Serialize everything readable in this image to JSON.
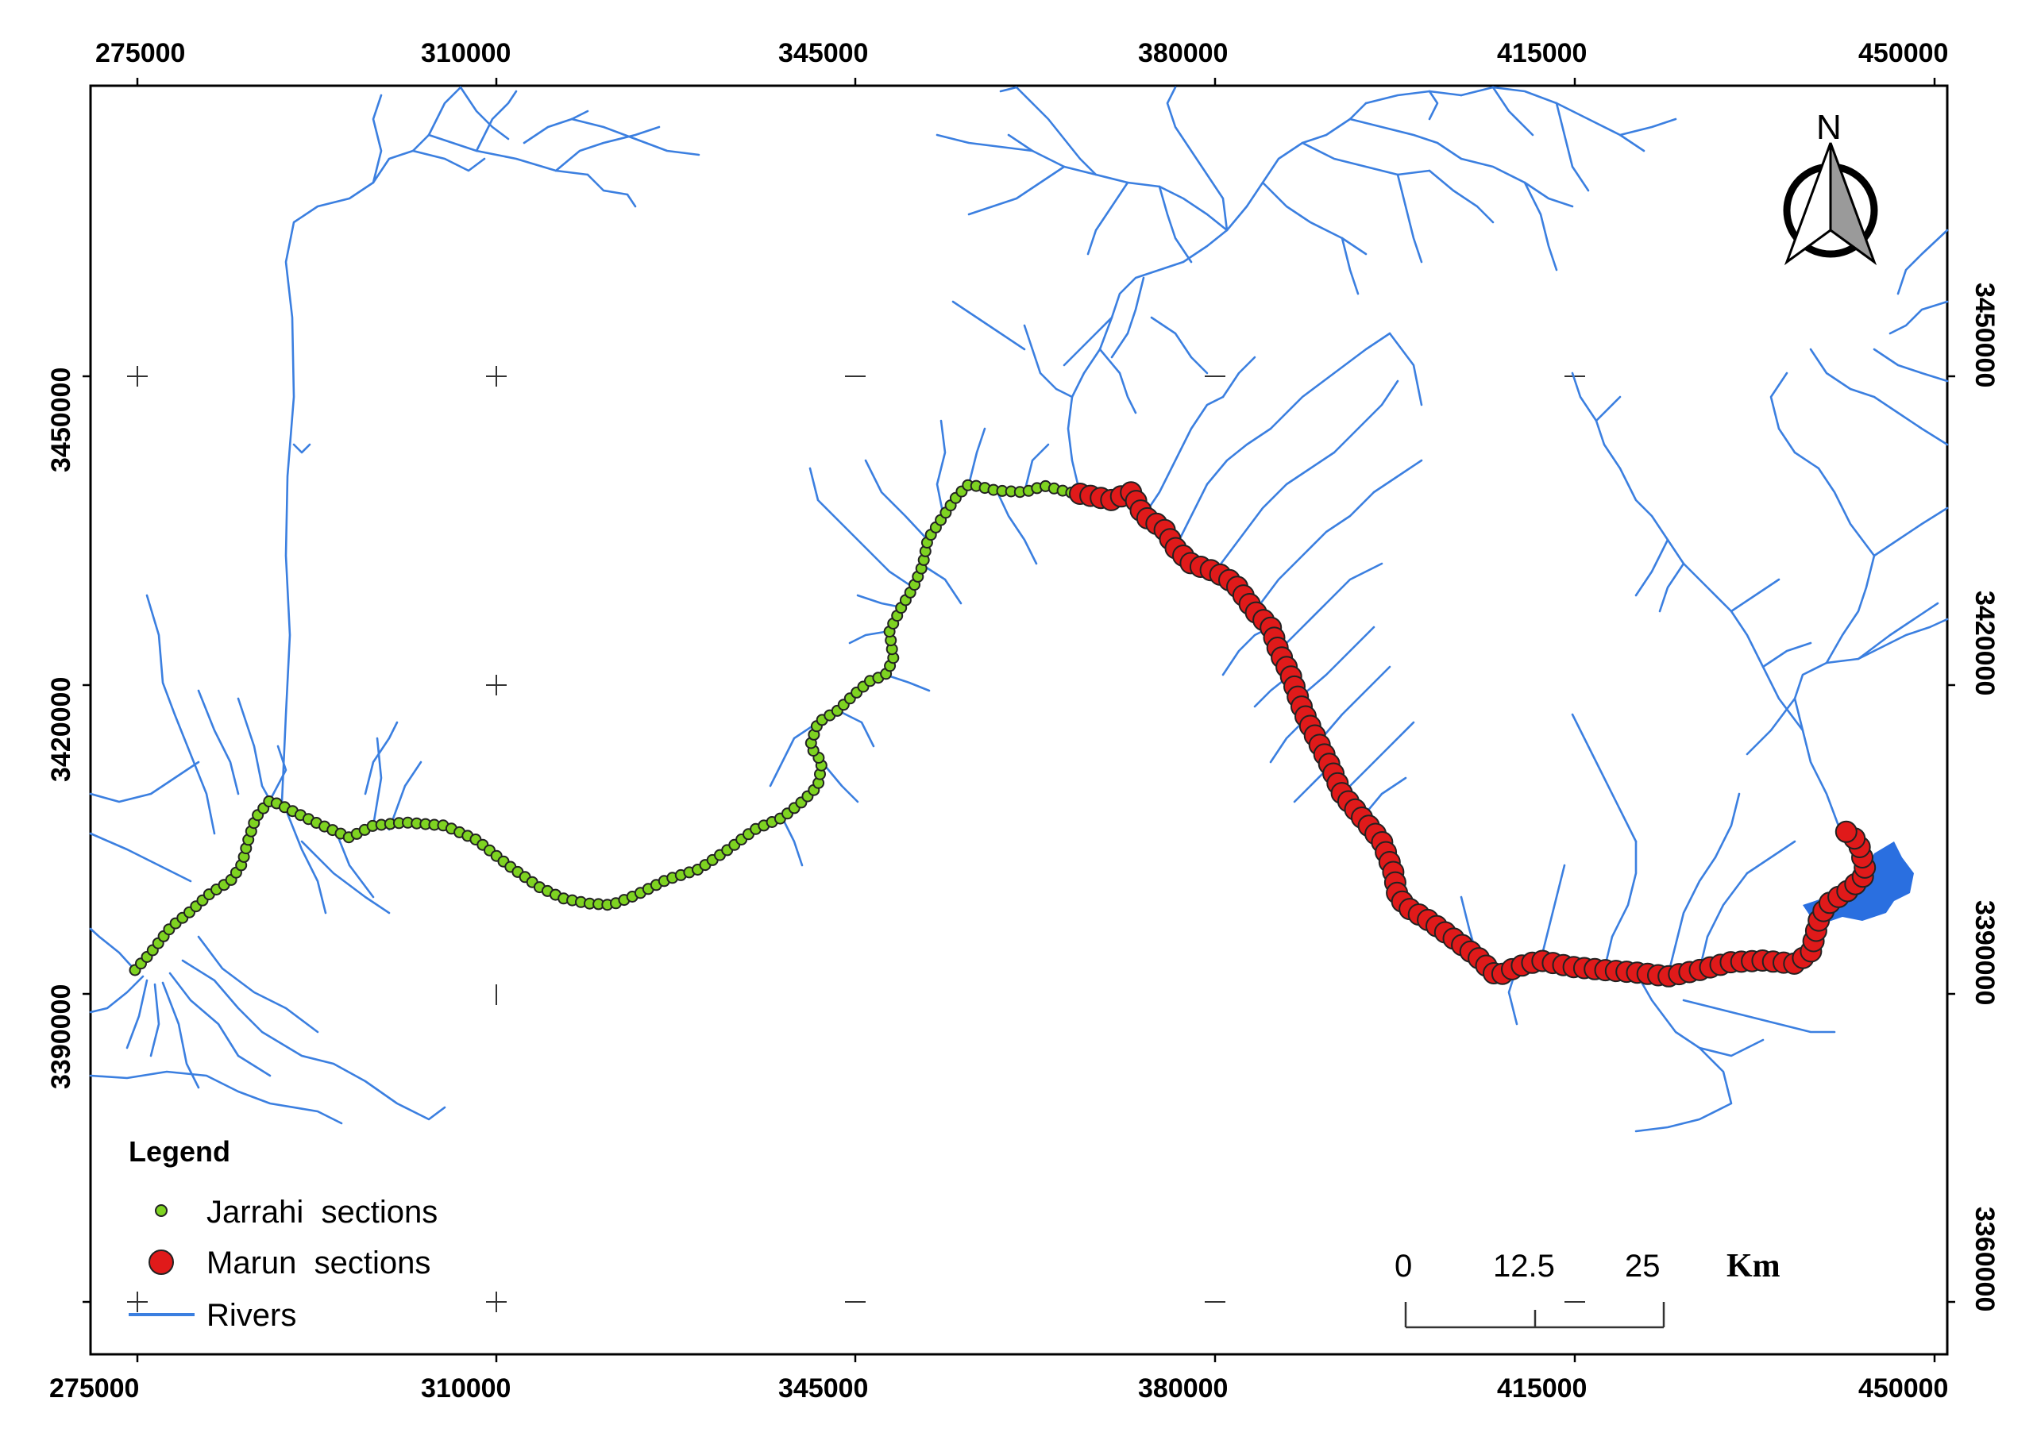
{
  "axes": {
    "x_ticks": [
      "275000",
      "310000",
      "345000",
      "380000",
      "415000",
      "450000"
    ],
    "y_ticks": [
      "3450000",
      "3420000",
      "3390000",
      "3360000"
    ]
  },
  "legend": {
    "title": "Legend",
    "items": [
      {
        "label": "Jarrahi  sections",
        "color": "#7ed321",
        "symbol": "small-circle"
      },
      {
        "label": "Marun  sections",
        "color": "#e01a1a",
        "symbol": "large-circle"
      },
      {
        "label": "Rivers",
        "color": "#3b7fe0",
        "symbol": "line"
      }
    ]
  },
  "scale_bar": {
    "labels": [
      "0",
      "12.5",
      "25"
    ],
    "unit": "Km"
  },
  "north_arrow": {
    "label": "N"
  },
  "colors": {
    "river": "#3b7fe0",
    "jarrahi": "#7ed321",
    "marun": "#e01a1a",
    "frame": "#000000"
  }
}
